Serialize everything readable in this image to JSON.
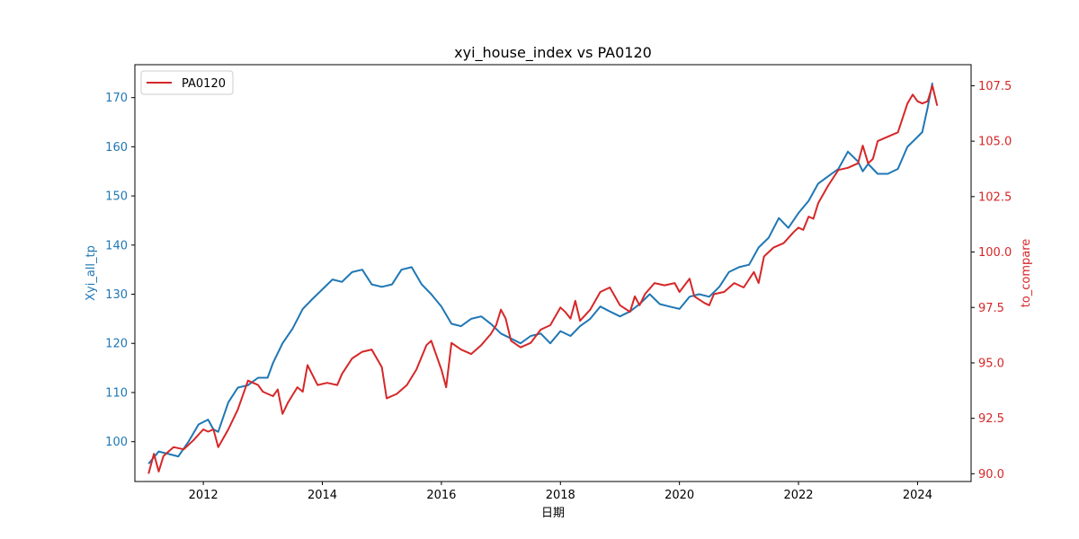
{
  "chart_data": {
    "type": "line",
    "title": "xyi_house_index vs PA0120",
    "xlabel": "日期",
    "ylabel_left": "Xyi_all_tp",
    "ylabel_right": "to_compare",
    "xlim": [
      2010.85,
      2024.9
    ],
    "ylim_left": [
      91.9,
      176.7
    ],
    "ylim_right": [
      89.65,
      108.45
    ],
    "x_ticks": [
      2012,
      2014,
      2016,
      2018,
      2020,
      2022,
      2024
    ],
    "x_tick_labels": [
      "2012",
      "2014",
      "2016",
      "2018",
      "2020",
      "2022",
      "2024"
    ],
    "y_left_ticks": [
      100,
      110,
      120,
      130,
      140,
      150,
      160,
      170
    ],
    "y_left_tick_labels": [
      "100",
      "110",
      "120",
      "130",
      "140",
      "150",
      "160",
      "170"
    ],
    "y_right_ticks": [
      90.0,
      92.5,
      95.0,
      97.5,
      100.0,
      102.5,
      105.0,
      107.5
    ],
    "y_right_tick_labels": [
      "90.0",
      "92.5",
      "95.0",
      "97.5",
      "100.0",
      "102.5",
      "105.0",
      "107.5"
    ],
    "grid": false,
    "legend": {
      "position": "top-left",
      "entries": [
        "PA0120"
      ]
    },
    "colors": {
      "left_series": "#1f77b4",
      "right_series": "#d62728"
    },
    "series": [
      {
        "axis": "left",
        "color": "#1f77b4",
        "points": [
          [
            2011.08,
            95.5
          ],
          [
            2011.25,
            98.0
          ],
          [
            2011.42,
            97.5
          ],
          [
            2011.58,
            97.0
          ],
          [
            2011.75,
            100.0
          ],
          [
            2011.92,
            103.5
          ],
          [
            2012.08,
            104.5
          ],
          [
            2012.17,
            102.5
          ],
          [
            2012.25,
            102.0
          ],
          [
            2012.42,
            108.0
          ],
          [
            2012.58,
            111.0
          ],
          [
            2012.75,
            111.5
          ],
          [
            2012.92,
            113.0
          ],
          [
            2013.08,
            113.0
          ],
          [
            2013.17,
            116.0
          ],
          [
            2013.33,
            120.0
          ],
          [
            2013.5,
            123.0
          ],
          [
            2013.67,
            127.0
          ],
          [
            2013.83,
            129.0
          ],
          [
            2014.0,
            131.0
          ],
          [
            2014.17,
            133.0
          ],
          [
            2014.33,
            132.5
          ],
          [
            2014.5,
            134.5
          ],
          [
            2014.67,
            135.0
          ],
          [
            2014.83,
            132.0
          ],
          [
            2015.0,
            131.5
          ],
          [
            2015.17,
            132.0
          ],
          [
            2015.33,
            135.0
          ],
          [
            2015.5,
            135.5
          ],
          [
            2015.67,
            132.0
          ],
          [
            2015.83,
            130.0
          ],
          [
            2016.0,
            127.5
          ],
          [
            2016.17,
            124.0
          ],
          [
            2016.33,
            123.5
          ],
          [
            2016.5,
            125.0
          ],
          [
            2016.67,
            125.5
          ],
          [
            2016.83,
            124.0
          ],
          [
            2017.0,
            122.0
          ],
          [
            2017.17,
            121.0
          ],
          [
            2017.33,
            120.0
          ],
          [
            2017.5,
            121.5
          ],
          [
            2017.67,
            122.0
          ],
          [
            2017.83,
            120.0
          ],
          [
            2018.0,
            122.5
          ],
          [
            2018.17,
            121.5
          ],
          [
            2018.33,
            123.5
          ],
          [
            2018.5,
            125.0
          ],
          [
            2018.67,
            127.5
          ],
          [
            2018.83,
            126.5
          ],
          [
            2019.0,
            125.5
          ],
          [
            2019.17,
            126.5
          ],
          [
            2019.33,
            128.0
          ],
          [
            2019.5,
            130.0
          ],
          [
            2019.67,
            128.0
          ],
          [
            2019.83,
            127.5
          ],
          [
            2020.0,
            127.0
          ],
          [
            2020.17,
            129.5
          ],
          [
            2020.33,
            130.0
          ],
          [
            2020.5,
            129.5
          ],
          [
            2020.67,
            131.5
          ],
          [
            2020.83,
            134.5
          ],
          [
            2021.0,
            135.5
          ],
          [
            2021.17,
            136.0
          ],
          [
            2021.33,
            139.5
          ],
          [
            2021.5,
            141.5
          ],
          [
            2021.67,
            145.5
          ],
          [
            2021.83,
            143.5
          ],
          [
            2022.0,
            146.5
          ],
          [
            2022.17,
            149.0
          ],
          [
            2022.33,
            152.5
          ],
          [
            2022.5,
            154.0
          ],
          [
            2022.67,
            155.5
          ],
          [
            2022.83,
            159.0
          ],
          [
            2023.0,
            157.0
          ],
          [
            2023.08,
            155.0
          ],
          [
            2023.17,
            156.5
          ],
          [
            2023.33,
            154.5
          ],
          [
            2023.5,
            154.5
          ],
          [
            2023.67,
            155.5
          ],
          [
            2023.83,
            160.0
          ],
          [
            2024.0,
            162.0
          ],
          [
            2024.08,
            163.0
          ],
          [
            2024.17,
            168.0
          ],
          [
            2024.25,
            173.0
          ]
        ]
      },
      {
        "name": "PA0120",
        "axis": "right",
        "color": "#d62728",
        "points": [
          [
            2011.08,
            90.0
          ],
          [
            2011.17,
            90.9
          ],
          [
            2011.25,
            90.1
          ],
          [
            2011.33,
            90.8
          ],
          [
            2011.5,
            91.2
          ],
          [
            2011.67,
            91.1
          ],
          [
            2011.83,
            91.5
          ],
          [
            2012.0,
            92.0
          ],
          [
            2012.08,
            91.9
          ],
          [
            2012.17,
            92.0
          ],
          [
            2012.25,
            91.2
          ],
          [
            2012.42,
            92.0
          ],
          [
            2012.58,
            92.9
          ],
          [
            2012.75,
            94.2
          ],
          [
            2012.92,
            94.0
          ],
          [
            2013.0,
            93.7
          ],
          [
            2013.17,
            93.5
          ],
          [
            2013.25,
            93.8
          ],
          [
            2013.33,
            92.7
          ],
          [
            2013.42,
            93.2
          ],
          [
            2013.58,
            93.9
          ],
          [
            2013.67,
            93.7
          ],
          [
            2013.75,
            94.9
          ],
          [
            2013.92,
            94.0
          ],
          [
            2014.08,
            94.1
          ],
          [
            2014.25,
            94.0
          ],
          [
            2014.33,
            94.5
          ],
          [
            2014.5,
            95.2
          ],
          [
            2014.67,
            95.5
          ],
          [
            2014.83,
            95.6
          ],
          [
            2015.0,
            94.8
          ],
          [
            2015.08,
            93.4
          ],
          [
            2015.25,
            93.6
          ],
          [
            2015.42,
            94.0
          ],
          [
            2015.58,
            94.7
          ],
          [
            2015.75,
            95.8
          ],
          [
            2015.83,
            96.0
          ],
          [
            2016.0,
            94.7
          ],
          [
            2016.08,
            93.9
          ],
          [
            2016.17,
            95.9
          ],
          [
            2016.33,
            95.6
          ],
          [
            2016.5,
            95.4
          ],
          [
            2016.67,
            95.8
          ],
          [
            2016.83,
            96.3
          ],
          [
            2016.92,
            96.7
          ],
          [
            2017.0,
            97.4
          ],
          [
            2017.08,
            97.0
          ],
          [
            2017.17,
            96.0
          ],
          [
            2017.33,
            95.7
          ],
          [
            2017.5,
            95.9
          ],
          [
            2017.67,
            96.5
          ],
          [
            2017.83,
            96.7
          ],
          [
            2018.0,
            97.5
          ],
          [
            2018.08,
            97.3
          ],
          [
            2018.17,
            97.0
          ],
          [
            2018.25,
            97.8
          ],
          [
            2018.33,
            96.9
          ],
          [
            2018.5,
            97.4
          ],
          [
            2018.67,
            98.2
          ],
          [
            2018.83,
            98.4
          ],
          [
            2019.0,
            97.6
          ],
          [
            2019.17,
            97.3
          ],
          [
            2019.25,
            98.0
          ],
          [
            2019.33,
            97.6
          ],
          [
            2019.42,
            98.1
          ],
          [
            2019.58,
            98.6
          ],
          [
            2019.75,
            98.5
          ],
          [
            2019.92,
            98.6
          ],
          [
            2020.0,
            98.2
          ],
          [
            2020.17,
            98.8
          ],
          [
            2020.25,
            98.0
          ],
          [
            2020.42,
            97.7
          ],
          [
            2020.5,
            97.6
          ],
          [
            2020.58,
            98.1
          ],
          [
            2020.75,
            98.2
          ],
          [
            2020.92,
            98.6
          ],
          [
            2021.08,
            98.4
          ],
          [
            2021.25,
            99.1
          ],
          [
            2021.33,
            98.6
          ],
          [
            2021.42,
            99.8
          ],
          [
            2021.58,
            100.2
          ],
          [
            2021.75,
            100.4
          ],
          [
            2021.92,
            100.9
          ],
          [
            2022.0,
            101.1
          ],
          [
            2022.08,
            101.0
          ],
          [
            2022.17,
            101.6
          ],
          [
            2022.25,
            101.5
          ],
          [
            2022.33,
            102.2
          ],
          [
            2022.5,
            103.0
          ],
          [
            2022.67,
            103.7
          ],
          [
            2022.83,
            103.8
          ],
          [
            2023.0,
            104.0
          ],
          [
            2023.08,
            104.8
          ],
          [
            2023.17,
            104.0
          ],
          [
            2023.25,
            104.2
          ],
          [
            2023.33,
            105.0
          ],
          [
            2023.5,
            105.2
          ],
          [
            2023.67,
            105.4
          ],
          [
            2023.83,
            106.7
          ],
          [
            2023.92,
            107.1
          ],
          [
            2024.0,
            106.8
          ],
          [
            2024.08,
            106.7
          ],
          [
            2024.17,
            106.8
          ],
          [
            2024.25,
            107.5
          ],
          [
            2024.33,
            106.6
          ]
        ]
      }
    ]
  }
}
